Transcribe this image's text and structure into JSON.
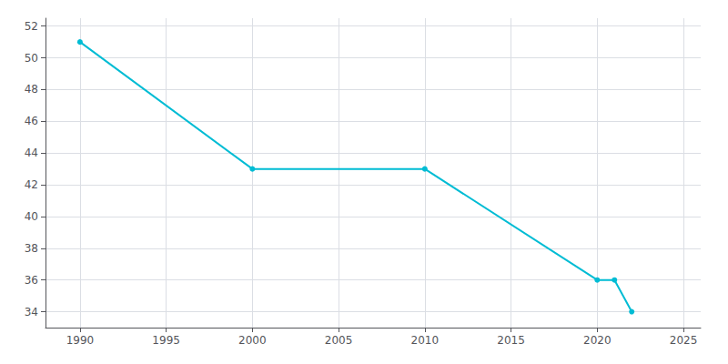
{
  "chart_data": {
    "type": "line",
    "x": [
      1990,
      2000,
      2010,
      2020,
      2021,
      2022
    ],
    "values": [
      51,
      43,
      43,
      36,
      36,
      34
    ],
    "color": "#00BCD4",
    "marker": "circle",
    "xlim": [
      1988,
      2026
    ],
    "xticks": [
      1990,
      1995,
      2000,
      2005,
      2010,
      2015,
      2020,
      2025
    ],
    "ylim": [
      33,
      52.5
    ],
    "yticks": [
      34,
      36,
      38,
      40,
      42,
      44,
      46,
      48,
      50,
      52
    ],
    "grid": true
  }
}
